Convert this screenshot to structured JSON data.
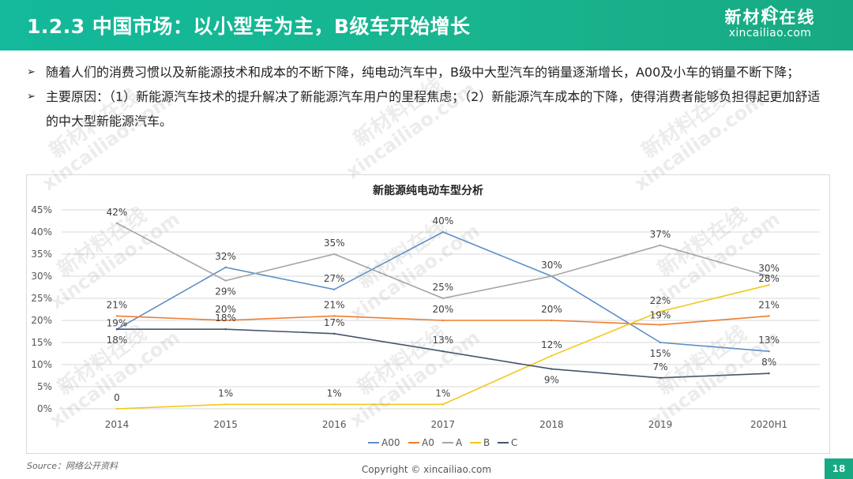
{
  "header": {
    "title": "1.2.3 中国市场：以小型车为主，B级车开始增长",
    "logo_cn": "新材料在线",
    "logo_en": "xincailiao.com"
  },
  "bullets": [
    {
      "text": "随着人们的消费习惯以及新能源技术和成本的不断下降，纯电动汽车中，B级中大型汽车的销量逐渐增长，A00及小车的销量不断下降；"
    },
    {
      "text": "主要原因：（1）新能源汽车技术的提升解决了新能源汽车用户的里程焦虑；（2）新能源汽车成本的下降，使得消费者能够负担得起更加舒适的中大型新能源汽车。"
    }
  ],
  "chart_data": {
    "type": "line",
    "title": "新能源纯电动车型分析",
    "categories": [
      "2014",
      "2015",
      "2016",
      "2017",
      "2018",
      "2019",
      "2020H1"
    ],
    "ylim": [
      0,
      45
    ],
    "yticks": [
      "0%",
      "5%",
      "10%",
      "15%",
      "20%",
      "25%",
      "30%",
      "35%",
      "40%",
      "45%"
    ],
    "grid": true,
    "legend_position": "bottom",
    "series": [
      {
        "name": "A00",
        "color": "#5b8fc7",
        "values": [
          18,
          32,
          27,
          40,
          30,
          15,
          13
        ],
        "labels": [
          "",
          "32%",
          "27%",
          "40%",
          "",
          "15%",
          "13%"
        ]
      },
      {
        "name": "A0",
        "color": "#ed7d31",
        "values": [
          21,
          20,
          21,
          20,
          20,
          19,
          21
        ],
        "labels": [
          "21%",
          "20%",
          "21%",
          "20%",
          "20%",
          "19%",
          "21%"
        ]
      },
      {
        "name": "A",
        "color": "#a5a5a5",
        "values": [
          42,
          29,
          35,
          25,
          30,
          37,
          30
        ],
        "labels": [
          "42%",
          "29%",
          "35%",
          "25%",
          "30%",
          "37%",
          "30%"
        ]
      },
      {
        "name": "B",
        "color": "#f2c818",
        "values": [
          0,
          1,
          1,
          1,
          12,
          22,
          28
        ],
        "labels": [
          "0",
          "1%",
          "1%",
          "1%",
          "12%",
          "22%",
          "28%"
        ]
      },
      {
        "name": "C",
        "color": "#44546a",
        "values": [
          18,
          18,
          17,
          13,
          9,
          7,
          8
        ],
        "labels": [
          "18%",
          "18%",
          "17%",
          "13%",
          "9%",
          "7%",
          "8%"
        ]
      }
    ],
    "extra_labels": [
      "19%"
    ]
  },
  "footer": {
    "source": "Source：网络公开资料",
    "copyright": "Copyright © xincailiao.com",
    "page": "18"
  },
  "watermark": {
    "cn": "新材料在线",
    "en": "xincailiao.com"
  }
}
